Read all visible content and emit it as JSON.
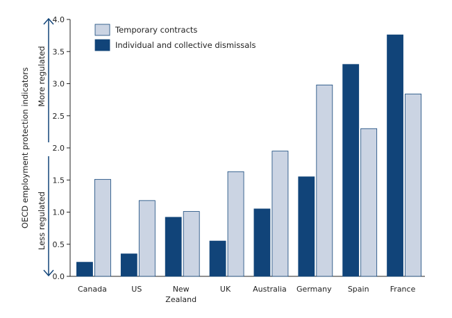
{
  "chart_data": {
    "type": "bar",
    "categories": [
      "Canada",
      "US",
      "New Zealand",
      "UK",
      "Australia",
      "Germany",
      "Spain",
      "France"
    ],
    "category_lines": [
      [
        "Canada"
      ],
      [
        "US"
      ],
      [
        "New",
        "Zealand"
      ],
      [
        "UK"
      ],
      [
        "Australia"
      ],
      [
        "Germany"
      ],
      [
        "Spain"
      ],
      [
        "France"
      ]
    ],
    "series": [
      {
        "name": "Individual and collective dismissals",
        "color": "#114479",
        "values": [
          0.22,
          0.35,
          0.92,
          0.55,
          1.05,
          1.55,
          3.3,
          3.76
        ]
      },
      {
        "name": "Temporary contracts",
        "color": "#cbd4e3",
        "values": [
          1.51,
          1.18,
          1.01,
          1.63,
          1.95,
          2.98,
          2.3,
          2.84
        ]
      }
    ],
    "legend_order": [
      1,
      0
    ],
    "legend_position": "top-left",
    "ylabel": "OECD employment protection indicators",
    "annotations": {
      "upper": "More regulated",
      "lower": "Less regulated"
    },
    "ylim": [
      0,
      4
    ],
    "yticks": [
      "0.0",
      "0.5",
      "1.0",
      "1.5",
      "2.0",
      "2.5",
      "3.0",
      "3.5",
      "4.0"
    ],
    "grid": false
  }
}
